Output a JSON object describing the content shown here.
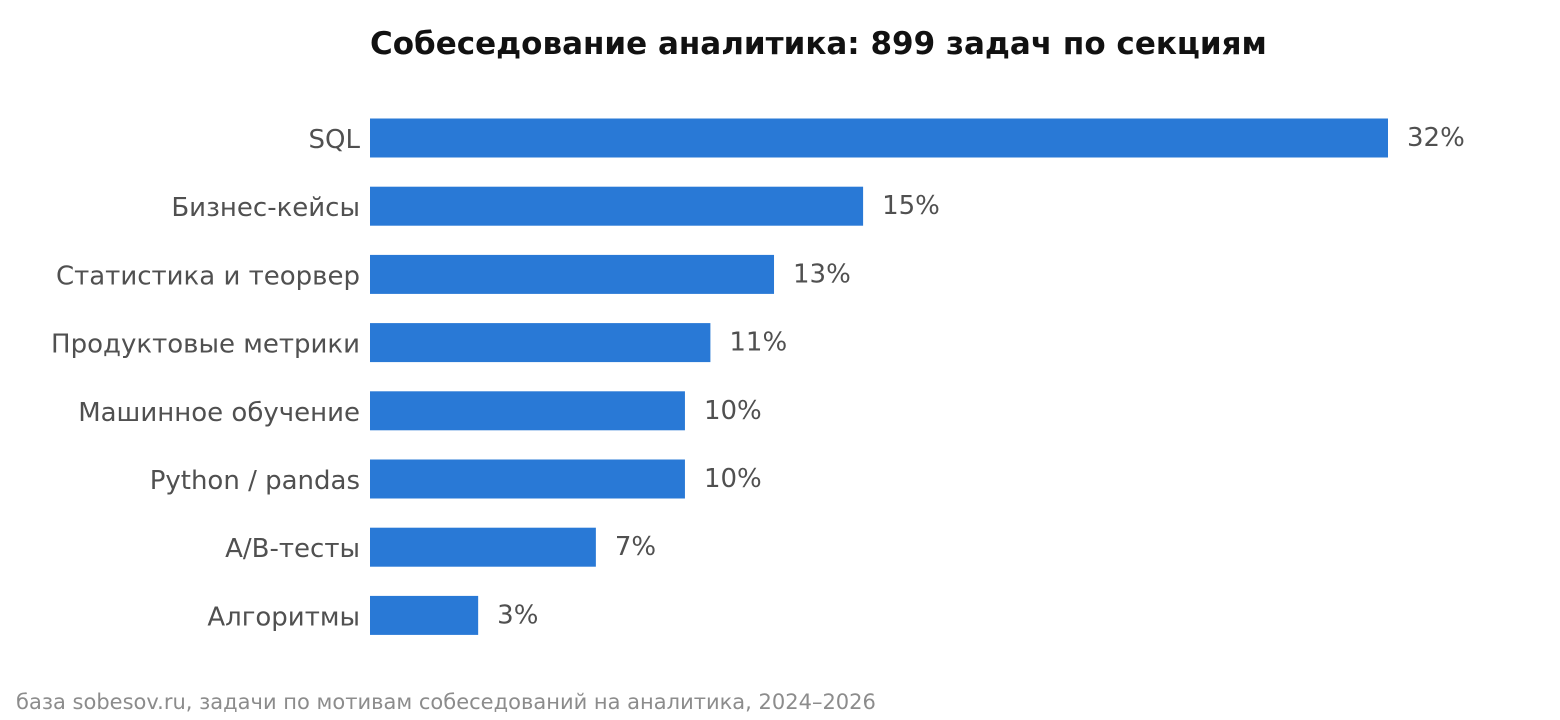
{
  "chart_data": {
    "type": "bar",
    "orientation": "horizontal",
    "title": "Собеседование аналитика: 899 задач по секциям",
    "categories": [
      "SQL",
      "Бизнес-кейсы",
      "Статистика и теорвер",
      "Продуктовые метрики",
      "Машинное обучение",
      "Python / pandas",
      "A/B-тесты",
      "Алгоритмы"
    ],
    "values": [
      32,
      15.5,
      12.7,
      10.7,
      9.9,
      9.9,
      7.1,
      3.4
    ],
    "value_labels": [
      "32%",
      "15%",
      "13%",
      "11%",
      "10%",
      "10%",
      "7%",
      "3%"
    ],
    "unit": "%",
    "xlim": [
      0,
      32
    ],
    "grid": false,
    "legend": "none",
    "bar_color": "#2979d6",
    "footnote": "база sobesov.ru, задачи по мотивам собеседований на аналитика, 2024–2026"
  }
}
